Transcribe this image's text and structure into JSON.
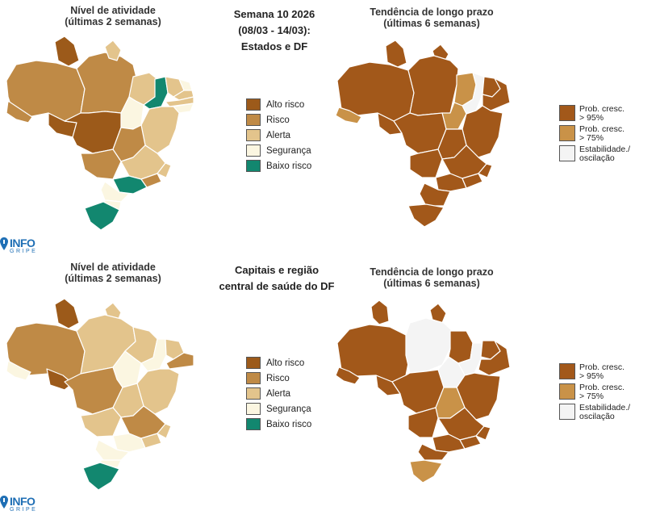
{
  "header": {
    "center_top": [
      "Semana 10 2026",
      "(08/03 - 14/03):",
      "Estados e DF"
    ],
    "center_bottom": [
      "Capitais e região",
      "central de saúde do DF"
    ]
  },
  "maps": {
    "activity_title_line1": "Nível de atividade",
    "activity_title_line2": "(últimas 2 semanas)",
    "trend_title_line1": "Tendência de longo prazo",
    "trend_title_line2": "(últimas 6 semanas)"
  },
  "activity_legend": [
    {
      "label": "Alto risco",
      "color": "#9c5a1a"
    },
    {
      "label": "Risco",
      "color": "#bf8a46"
    },
    {
      "label": "Alerta",
      "color": "#e3c48c"
    },
    {
      "label": "Segurança",
      "color": "#fbf6e1"
    },
    {
      "label": "Baixo risco",
      "color": "#12876f"
    }
  ],
  "trend_legend": [
    {
      "label_line1": "Prob. cresc.",
      "label_line2": "> 95%",
      "color": "#a2581a"
    },
    {
      "label_line1": "Prob. cresc.",
      "label_line2": "> 75%",
      "color": "#c99248"
    },
    {
      "label_line1": "Estabilidade./",
      "label_line2": "oscilação",
      "color": "#f4f4f4"
    }
  ],
  "logo": {
    "line1": "INFO",
    "line2": "GRIPE",
    "color": "#1f6fb5"
  }
}
